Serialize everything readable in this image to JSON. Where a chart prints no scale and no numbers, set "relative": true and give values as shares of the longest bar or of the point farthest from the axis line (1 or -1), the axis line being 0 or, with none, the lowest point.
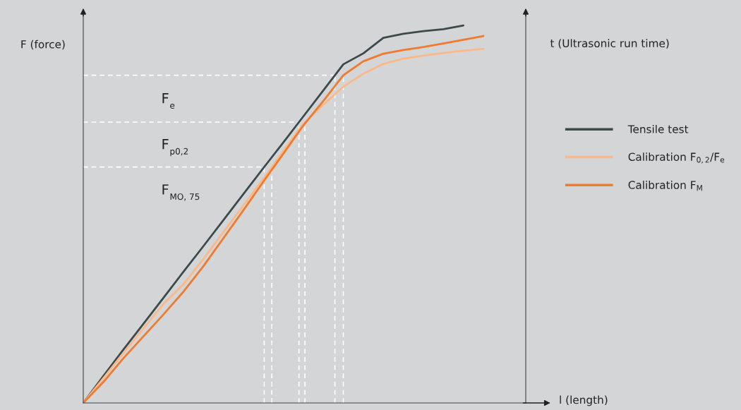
{
  "chart_data": {
    "type": "line",
    "relative": true,
    "ylabel": "F (force)",
    "categories": [
      null,
      null,
      null,
      null,
      null,
      null,
      null,
      null,
      null,
      null,
      null,
      null,
      null,
      null,
      null,
      null,
      null,
      null,
      null,
      null,
      null
    ],
    "series": [
      {
        "name": "Tensile test",
        "color": "#3b4a4a",
        "values": [
          0,
          0.071,
          0.141,
          0.209,
          0.278,
          0.347,
          0.415,
          0.484,
          0.553,
          0.622,
          0.69,
          0.759,
          0.828,
          0.897,
          0.926,
          0.967,
          0.978,
          0.985,
          0.99,
          1.0,
          null
        ]
      },
      {
        "name": "Calibration F$_{0,2}$/F$_{e}$",
        "color": "#fbb98a",
        "values": [
          0,
          0.065,
          0.132,
          0.197,
          0.262,
          0.314,
          0.381,
          0.452,
          0.523,
          0.594,
          0.667,
          0.74,
          0.79,
          0.838,
          0.872,
          0.898,
          0.912,
          0.92,
          0.927,
          0.933,
          0.938
        ]
      },
      {
        "name": "Calibration F$_{M}$",
        "color": "#f07a2e",
        "values": [
          0,
          0.055,
          0.118,
          0.176,
          0.234,
          0.294,
          0.362,
          0.436,
          0.51,
          0.586,
          0.66,
          0.735,
          0.8,
          0.868,
          0.905,
          0.925,
          0.935,
          0.943,
          0.952,
          0.962,
          0.972
        ]
      }
    ],
    "ref_lines": [
      {
        "axis": "y",
        "value": 0.868,
        "color": "#ffffff",
        "line_style": "dashed"
      },
      {
        "axis": "y",
        "value": 0.744,
        "color": "#ffffff",
        "line_style": "dashed"
      },
      {
        "axis": "y",
        "value": 0.625,
        "color": "#ffffff",
        "line_style": "dashed"
      }
    ],
    "annotations": [
      "F$_{e}$",
      "F$_{p0,2}$",
      "F$_{MO, 75}$",
      "t (Ultrasonic run time)",
      "l (length)"
    ],
    "legend": "right"
  }
}
